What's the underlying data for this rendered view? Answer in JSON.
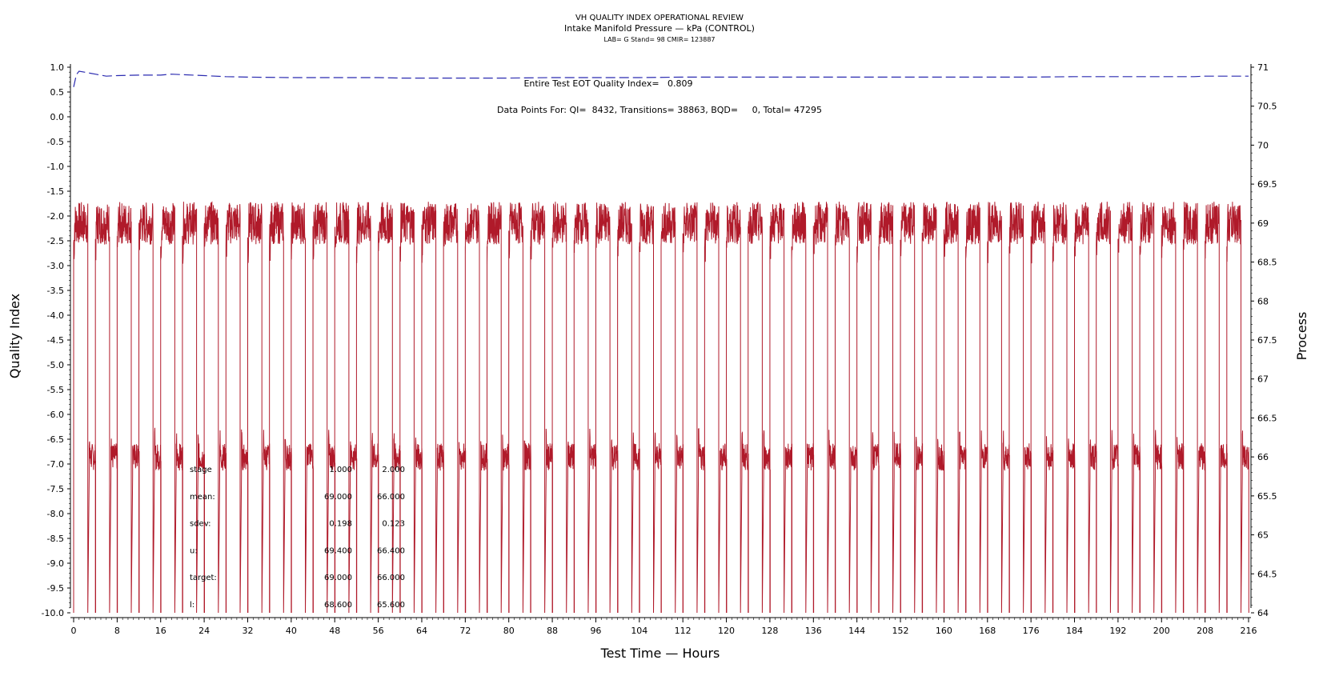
{
  "chart_data": {
    "type": "line",
    "title": "VH QUALITY INDEX OPERATIONAL REVIEW",
    "subtitle": "Intake Manifold Pressure — kPa (CONTROL)",
    "subtitle2": "LAB= G Stand= 98 CMIR= 123887",
    "xlabel": "Test Time — Hours",
    "ylabel": "Quality Index",
    "y2label": "Process",
    "xlim": [
      0,
      216
    ],
    "ylim": [
      -10,
      1
    ],
    "y2lim": [
      64,
      71
    ],
    "x_ticks": [
      0,
      8,
      16,
      24,
      32,
      40,
      48,
      56,
      64,
      72,
      80,
      88,
      96,
      104,
      112,
      120,
      128,
      136,
      144,
      152,
      160,
      168,
      176,
      184,
      192,
      200,
      208,
      216
    ],
    "y_ticks": [
      "1.0",
      "0.5",
      "0.0",
      "-0.5",
      "-1.0",
      "-1.5",
      "-2.0",
      "-2.5",
      "-3.0",
      "-3.5",
      "-4.0",
      "-4.5",
      "-5.0",
      "-5.5",
      "-6.0",
      "-6.5",
      "-7.0",
      "-7.5",
      "-8.0",
      "-8.5",
      "-9.0",
      "-9.5",
      "-10.0"
    ],
    "y2_ticks": [
      "71",
      "70.5",
      "70",
      "69.5",
      "69",
      "68.5",
      "68",
      "67.5",
      "67",
      "66.5",
      "66",
      "65.5",
      "65",
      "64.5",
      "64"
    ],
    "annotations": {
      "quality_index": "Entire Test EOT Quality Index=   0.809",
      "data_points": "Data Points For: QI=  8432, Transitions= 38863, BQD=     0, Total= 47295"
    },
    "stats_table": {
      "rows": [
        {
          "label": "stage",
          "v1": "1.000",
          "v2": "2.000"
        },
        {
          "label": "mean:",
          "v1": "69.000",
          "v2": "66.000"
        },
        {
          "label": "sdev:",
          "v1": "0.198",
          "v2": "0.123"
        },
        {
          "label": "u:",
          "v1": "69.400",
          "v2": "66.400"
        },
        {
          "label": "target:",
          "v1": "69.000",
          "v2": "66.000"
        },
        {
          "label": "l:",
          "v1": "68.600",
          "v2": "65.600"
        }
      ]
    },
    "series": [
      {
        "name": "Quality Index",
        "axis": "left",
        "style": "dashed",
        "x": [
          0,
          0.5,
          1,
          2,
          4,
          6,
          8,
          12,
          16,
          18,
          20,
          24,
          28,
          32,
          40,
          48,
          56,
          60,
          64,
          72,
          80,
          88,
          96,
          104,
          112,
          120,
          136,
          152,
          168,
          176,
          184,
          192,
          200,
          206,
          208,
          216
        ],
        "values": [
          0.6,
          0.85,
          0.92,
          0.9,
          0.86,
          0.82,
          0.83,
          0.84,
          0.84,
          0.86,
          0.85,
          0.83,
          0.81,
          0.8,
          0.79,
          0.79,
          0.79,
          0.78,
          0.78,
          0.78,
          0.78,
          0.79,
          0.79,
          0.79,
          0.8,
          0.8,
          0.8,
          0.8,
          0.8,
          0.8,
          0.81,
          0.81,
          0.81,
          0.81,
          0.82,
          0.82
        ]
      },
      {
        "name": "Process",
        "axis": "right",
        "style": "cycles",
        "cycle_starts": [
          0,
          4,
          8,
          12,
          16,
          20,
          24,
          28,
          32,
          36,
          40,
          44,
          48,
          52,
          56,
          60,
          64,
          68,
          72,
          76,
          80,
          84,
          88,
          92,
          96,
          100,
          104,
          108,
          112,
          116,
          120,
          124,
          128,
          132,
          136,
          140,
          144,
          148,
          152,
          156,
          160,
          164,
          168,
          172,
          176,
          180,
          184,
          188,
          192,
          196,
          200,
          204,
          208,
          212
        ],
        "high_stage_mean": 69.0,
        "low_stage_mean": 66.0,
        "high_stage_duration": 2.6,
        "low_stage_duration": 1.2,
        "min_drop": 64.0
      }
    ],
    "colors": {
      "quality_index": "#2b2bb0",
      "process": "#b01a2a",
      "axis": "#000000"
    },
    "grid": false
  }
}
